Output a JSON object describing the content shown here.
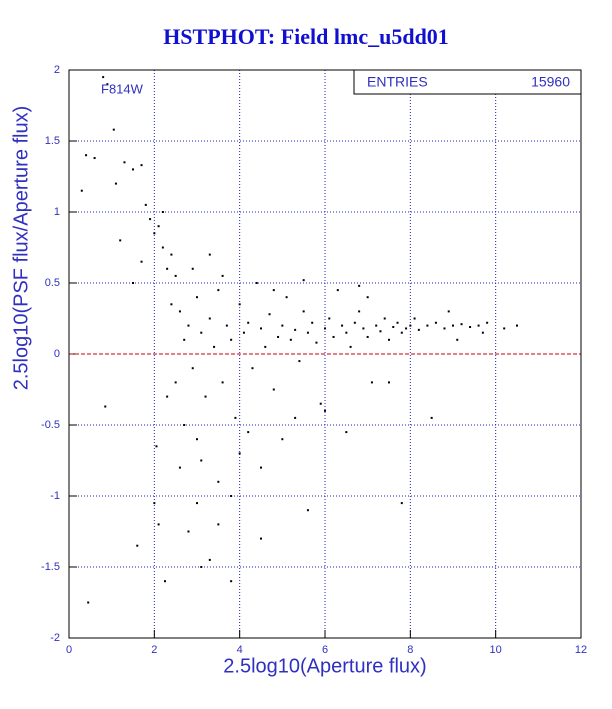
{
  "chart_data": {
    "type": "scatter",
    "title": "HSTPHOT: Field lmc_u5dd01",
    "annotation": "F814W",
    "stats": {
      "label": "ENTRIES",
      "value": 15960
    },
    "x_label": "2.5log10(Aperture flux)",
    "y_label": "2.5log10(PSF flux/Aperture flux)",
    "xlim": [
      0,
      12
    ],
    "ylim": [
      -2,
      2
    ],
    "xticks": [
      0,
      2,
      4,
      6,
      8,
      10,
      12
    ],
    "yticks": [
      -2,
      -1.5,
      -1,
      -0.5,
      0,
      0.5,
      1,
      1.5,
      2
    ],
    "grid": true,
    "grid_color": "#2020c0",
    "reference_line": {
      "value": 0,
      "color": "#cc0000"
    },
    "color": "#000000",
    "x": [
      0.3,
      0.4,
      0.6,
      0.8,
      0.9,
      1.05,
      1.1,
      1.3,
      1.5,
      1.7,
      1.8,
      1.9,
      2.0,
      2.1,
      2.2,
      2.3,
      1.2,
      1.5,
      1.7,
      2.2,
      2.4,
      2.5,
      0.85,
      0.45,
      1.6,
      2.0,
      2.05,
      2.1,
      2.3,
      2.6,
      2.8,
      3.0,
      3.1,
      3.3,
      3.8,
      2.25,
      3.5,
      4.5,
      5.6,
      7.8,
      2.6,
      2.7,
      2.8,
      2.9,
      3.0,
      3.1,
      3.2,
      3.3,
      3.4,
      3.5,
      3.6,
      3.7,
      3.8,
      3.9,
      4.0,
      4.1,
      4.2,
      4.3,
      4.4,
      4.5,
      4.6,
      4.7,
      4.8,
      4.9,
      5.0,
      5.1,
      5.2,
      5.3,
      5.4,
      5.5,
      5.6,
      5.7,
      5.8,
      5.9,
      6.0,
      6.1,
      6.2,
      6.3,
      6.4,
      6.5,
      6.6,
      6.7,
      6.8,
      6.9,
      7.0,
      7.1,
      7.2,
      7.3,
      7.4,
      7.5,
      7.6,
      7.7,
      7.8,
      7.9,
      8.0,
      8.1,
      8.2,
      8.4,
      8.6,
      8.8,
      9.0,
      9.2,
      9.4,
      9.6,
      9.8,
      10.2,
      10.5,
      8.5,
      6.5,
      7.5,
      5.0,
      4.0,
      3.5,
      3.0,
      2.7,
      4.5,
      6.0,
      3.8,
      2.9,
      3.3,
      4.8,
      5.5,
      6.8,
      3.6,
      2.4,
      2.5,
      3.1,
      4.2,
      5.3,
      7.0,
      9.1,
      8.9,
      9.7
    ],
    "values": [
      1.15,
      1.4,
      1.38,
      1.95,
      1.9,
      1.58,
      1.2,
      1.35,
      1.3,
      1.33,
      1.05,
      0.95,
      0.85,
      0.9,
      0.75,
      0.6,
      0.8,
      0.5,
      0.65,
      1.0,
      0.7,
      0.55,
      -0.37,
      -1.75,
      -1.35,
      -1.05,
      -0.65,
      -1.2,
      -0.3,
      -0.8,
      -1.25,
      -1.05,
      -1.5,
      -1.45,
      -1.6,
      -1.6,
      -1.2,
      -1.3,
      -1.1,
      -1.05,
      0.3,
      0.1,
      0.2,
      -0.1,
      0.4,
      0.15,
      -0.3,
      0.25,
      0.05,
      0.45,
      -0.2,
      0.2,
      0.1,
      -0.45,
      0.35,
      0.15,
      0.22,
      -0.1,
      0.5,
      0.18,
      0.05,
      0.28,
      -0.25,
      0.12,
      0.2,
      0.4,
      0.1,
      0.17,
      -0.05,
      0.3,
      0.15,
      0.22,
      0.08,
      -0.35,
      0.18,
      0.25,
      0.12,
      0.45,
      0.2,
      0.15,
      0.05,
      0.22,
      0.3,
      0.18,
      0.12,
      -0.2,
      0.2,
      0.16,
      0.25,
      0.1,
      0.19,
      0.22,
      0.15,
      0.18,
      0.2,
      0.25,
      0.17,
      0.2,
      0.22,
      0.18,
      0.2,
      0.21,
      0.19,
      0.2,
      0.22,
      0.18,
      0.2,
      -0.45,
      -0.55,
      -0.2,
      -0.6,
      -0.7,
      -0.9,
      -0.6,
      -0.5,
      -0.8,
      -0.4,
      -1.0,
      0.6,
      0.7,
      0.45,
      0.52,
      0.48,
      0.55,
      0.35,
      -0.2,
      -0.75,
      -0.55,
      -0.45,
      0.4,
      0.1,
      0.3,
      0.15
    ]
  }
}
